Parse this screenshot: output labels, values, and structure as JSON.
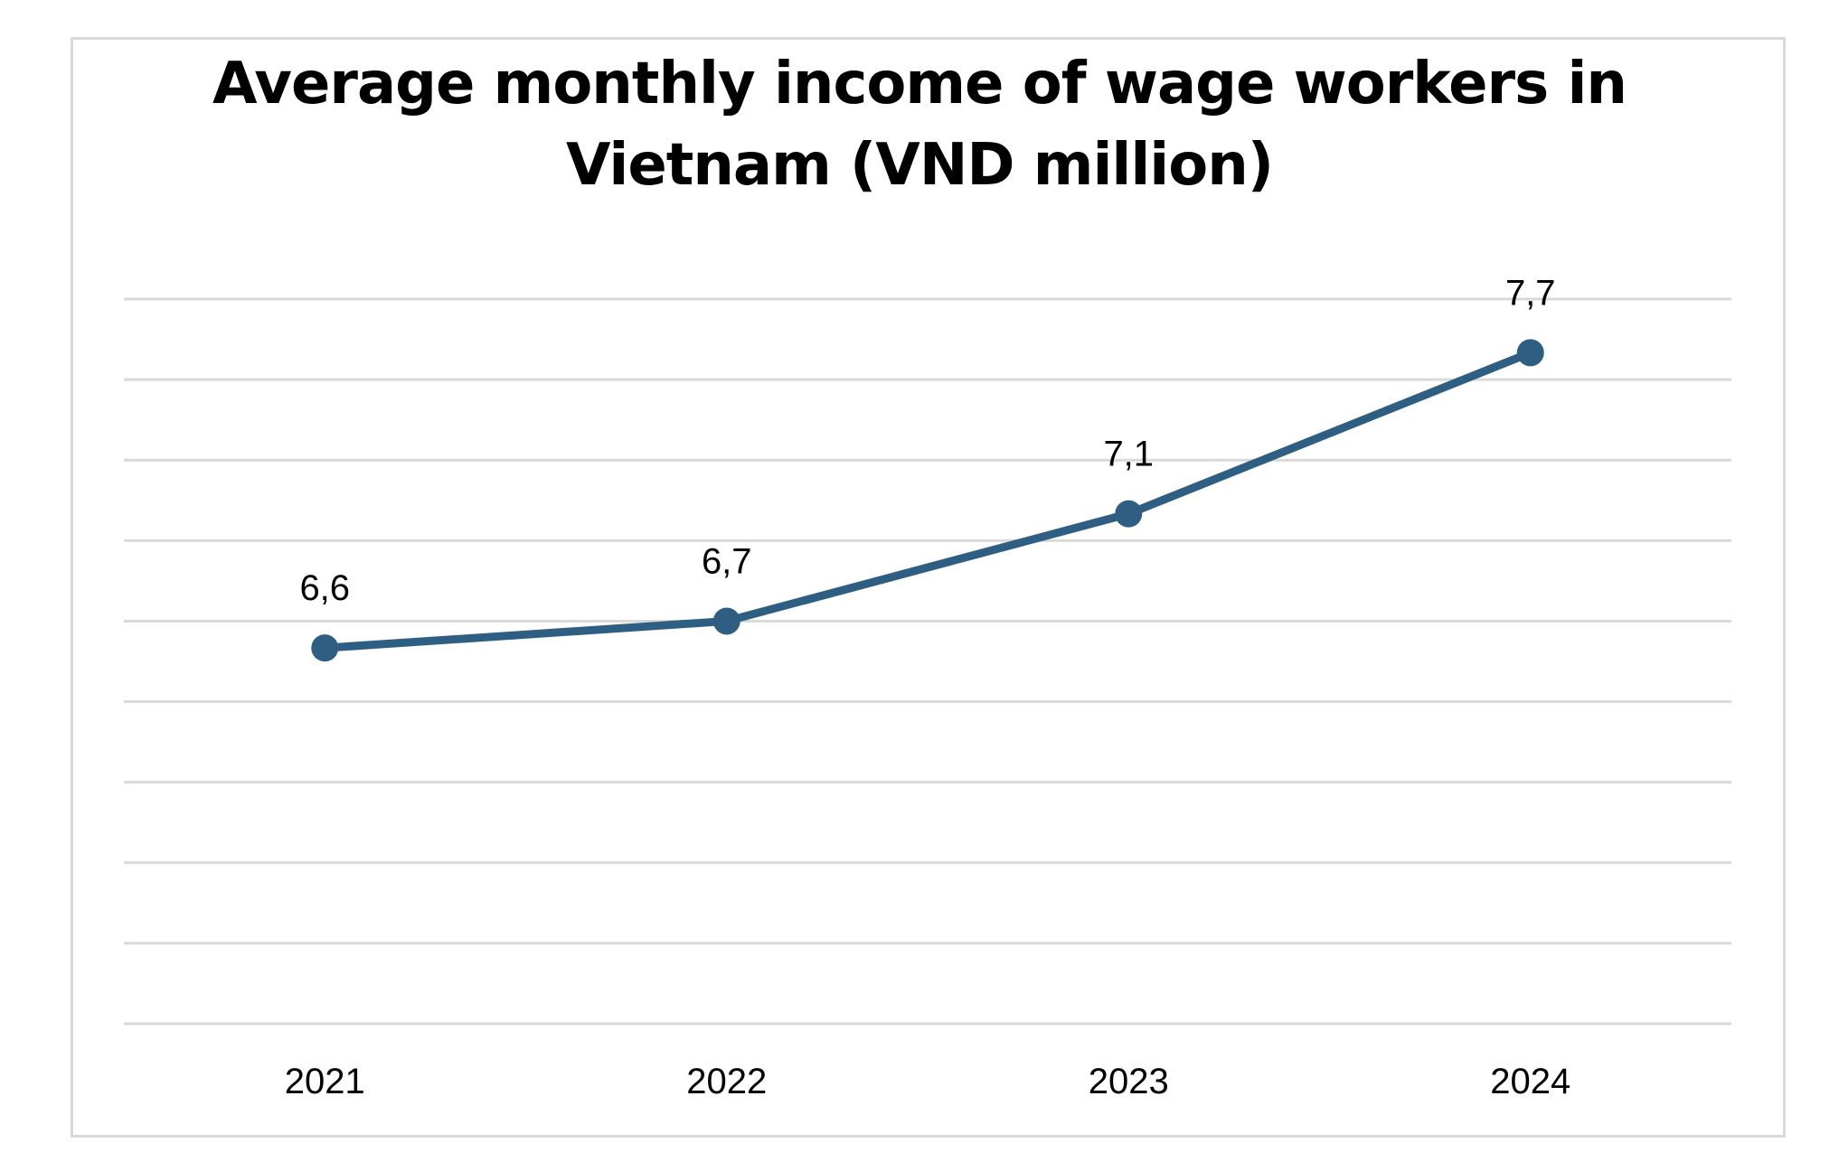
{
  "colors": {
    "series": "#2e5f82",
    "grid": "#d9d9d9",
    "text": "#000000",
    "border": "#d9d9d9"
  },
  "chart_data": {
    "type": "line",
    "title_lines": [
      "Average monthly income of wage workers in",
      "Vietnam (VND million)"
    ],
    "title": "Average monthly income of wage workers in Vietnam (VND million)",
    "xlabel": "",
    "ylabel": "",
    "categories": [
      "2021",
      "2022",
      "2023",
      "2024"
    ],
    "series": [
      {
        "values": [
          6.6,
          6.7,
          7.1,
          7.7
        ],
        "labels": [
          "6,6",
          "6,7",
          "7,1",
          "7,7"
        ]
      }
    ],
    "ylim": [
      5.2,
      7.9
    ],
    "ytick_step": 0.3,
    "grid": true,
    "legend": "none",
    "y_axis_labels_shown": false
  }
}
